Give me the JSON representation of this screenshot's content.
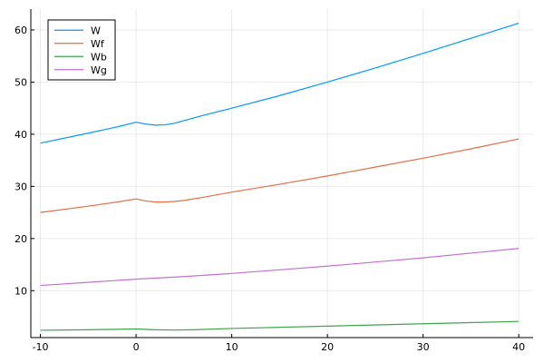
{
  "chart_data": {
    "type": "line",
    "title": "",
    "xlabel": "",
    "ylabel": "",
    "xlim": [
      -11,
      41.5
    ],
    "ylim": [
      1,
      64
    ],
    "xticks": [
      -10,
      0,
      10,
      20,
      30,
      40
    ],
    "yticks": [
      10,
      20,
      30,
      40,
      50,
      60
    ],
    "grid": true,
    "legend_position": "top-left",
    "series": [
      {
        "name": "W",
        "color": "#009AFA",
        "x": [
          -10,
          -5,
          -2,
          0,
          1,
          2,
          3,
          4,
          5,
          7,
          10,
          15,
          20,
          25,
          30,
          35,
          40
        ],
        "y": [
          38.3,
          40.2,
          41.4,
          42.3,
          41.95,
          41.75,
          41.8,
          42.1,
          42.6,
          43.6,
          45.0,
          47.4,
          50.0,
          52.7,
          55.5,
          58.4,
          61.3
        ]
      },
      {
        "name": "Wf",
        "color": "#E36F47",
        "x": [
          -10,
          -5,
          -2,
          0,
          1,
          2,
          3,
          4,
          5,
          7,
          10,
          15,
          20,
          25,
          30,
          35,
          40
        ],
        "y": [
          25.0,
          26.2,
          27.0,
          27.6,
          27.2,
          27.0,
          27.0,
          27.1,
          27.3,
          27.9,
          28.9,
          30.4,
          32.0,
          33.7,
          35.4,
          37.2,
          39.1
        ]
      },
      {
        "name": "Wb",
        "color": "#3EA44E",
        "x": [
          -10,
          -5,
          0,
          2,
          4,
          6,
          10,
          20,
          30,
          40
        ],
        "y": [
          2.4,
          2.5,
          2.65,
          2.5,
          2.45,
          2.5,
          2.75,
          3.2,
          3.65,
          4.1
        ]
      },
      {
        "name": "Wg",
        "color": "#C371D2",
        "x": [
          -10,
          -5,
          0,
          5,
          10,
          15,
          20,
          25,
          30,
          35,
          40
        ],
        "y": [
          11.0,
          11.6,
          12.2,
          12.7,
          13.3,
          14.0,
          14.7,
          15.5,
          16.3,
          17.2,
          18.1
        ]
      }
    ]
  }
}
